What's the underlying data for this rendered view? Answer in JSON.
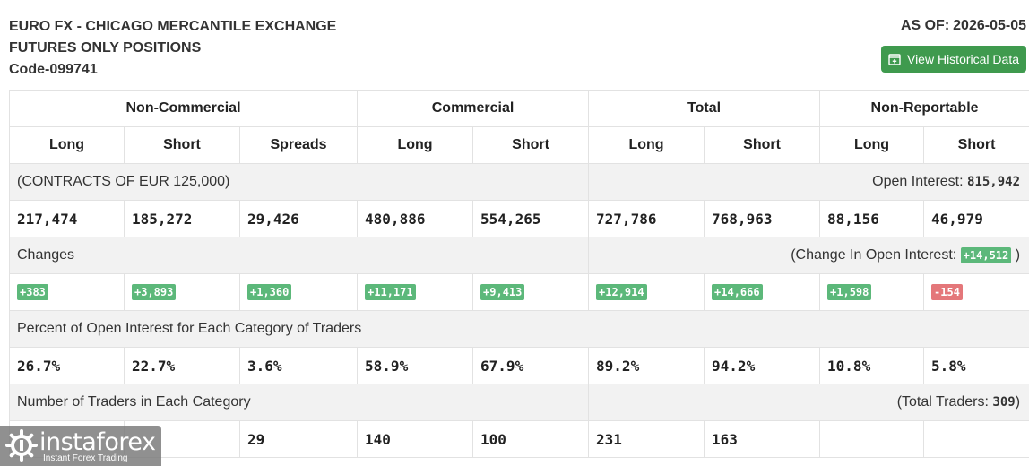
{
  "header": {
    "title_line1": "EURO FX - CHICAGO MERCANTILE EXCHANGE",
    "title_line2": "FUTURES ONLY POSITIONS",
    "code": "Code-099741",
    "as_of_label": "AS OF:",
    "as_of_date": "2026-05-05",
    "history_button": "View Historical Data",
    "history_icon": "calendar-plus-icon"
  },
  "groups": [
    "Non-Commercial",
    "Commercial",
    "Total",
    "Non-Reportable"
  ],
  "subheaders": [
    "Long",
    "Short",
    "Spreads",
    "Long",
    "Short",
    "Long",
    "Short",
    "Long",
    "Short"
  ],
  "contracts": {
    "label": "(CONTRACTS OF EUR 125,000)",
    "open_interest_label": "Open Interest:",
    "open_interest_value": "815,942",
    "values": [
      "217,474",
      "185,272",
      "29,426",
      "480,886",
      "554,265",
      "727,786",
      "768,963",
      "88,156",
      "46,979"
    ]
  },
  "changes": {
    "label": "Changes",
    "oi_change_label": "(Change In Open Interest:",
    "oi_change_value": "+14,512",
    "oi_change_close": ")",
    "values": [
      "+383",
      "+3,893",
      "+1,360",
      "+11,171",
      "+9,413",
      "+12,914",
      "+14,666",
      "+1,598",
      "-154"
    ],
    "colors": {
      "positive": "#5cb87a",
      "negative": "#e4777a"
    }
  },
  "percent": {
    "label": "Percent of Open Interest for Each Category of Traders",
    "values": [
      "26.7%",
      "22.7%",
      "3.6%",
      "58.9%",
      "67.9%",
      "89.2%",
      "94.2%",
      "10.8%",
      "5.8%"
    ]
  },
  "traders": {
    "label": "Number of Traders in Each Category",
    "total_label": "(Total Traders:",
    "total_value": "309",
    "total_close": ")",
    "values": [
      "",
      "",
      "29",
      "140",
      "100",
      "231",
      "163",
      "",
      ""
    ]
  },
  "watermark": {
    "brand": "instaforex",
    "tagline": "Instant Forex Trading"
  }
}
